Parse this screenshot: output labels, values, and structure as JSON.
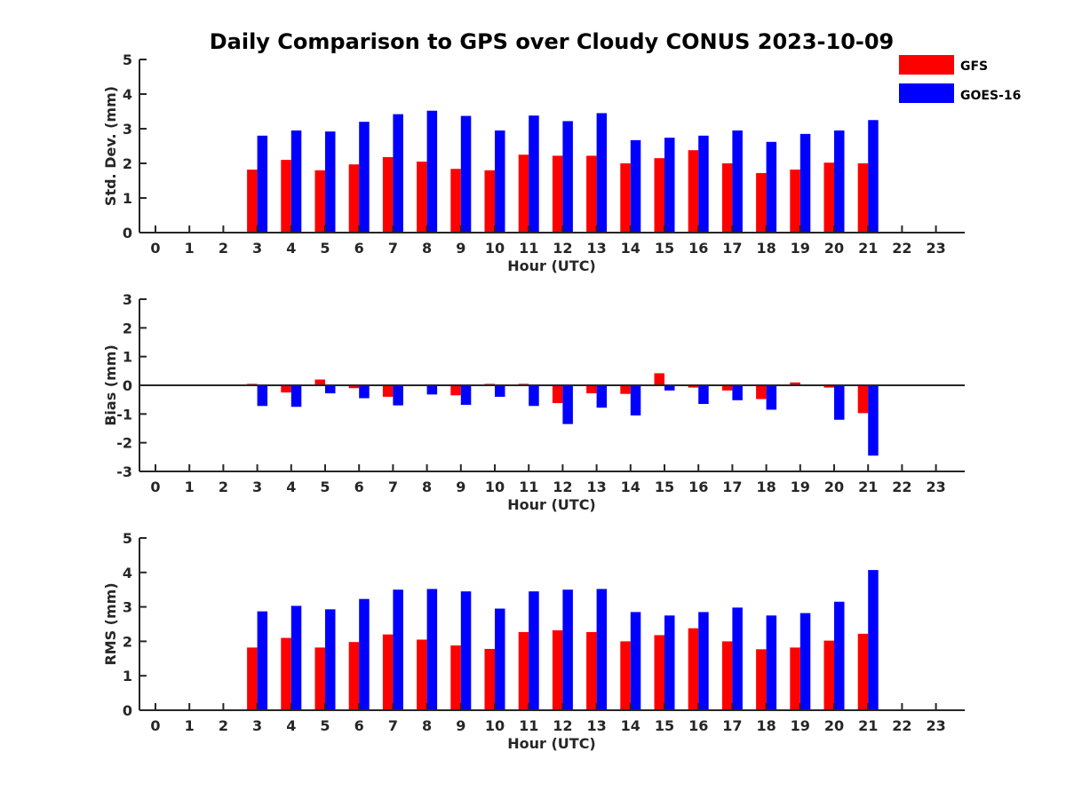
{
  "colors": {
    "gfs": "#ff0000",
    "goes": "#0000ff",
    "axis": "#262626"
  },
  "legend": [
    {
      "label": "GFS",
      "color": "#ff0000"
    },
    {
      "label": "GOES-16",
      "color": "#0000ff"
    }
  ],
  "chart_data": [
    {
      "type": "bar",
      "title": "Daily Comparison to GPS over Cloudy CONUS 2023-10-09",
      "xlabel": "Hour (UTC)",
      "ylabel": "Std. Dev. (mm)",
      "ylim": [
        0,
        5
      ],
      "yticks": [
        "0",
        "1",
        "2",
        "3",
        "4",
        "5"
      ],
      "categories": [
        "0",
        "1",
        "2",
        "3",
        "4",
        "5",
        "6",
        "7",
        "8",
        "9",
        "10",
        "11",
        "12",
        "13",
        "14",
        "15",
        "16",
        "17",
        "18",
        "19",
        "20",
        "21",
        "22",
        "23"
      ],
      "series": [
        {
          "name": "GFS",
          "values": [
            null,
            null,
            null,
            1.82,
            2.1,
            1.8,
            1.97,
            2.18,
            2.05,
            1.84,
            1.8,
            2.25,
            2.22,
            2.22,
            2.0,
            2.15,
            2.38,
            2.0,
            1.72,
            1.82,
            2.02,
            2.0,
            null,
            null
          ]
        },
        {
          "name": "GOES-16",
          "values": [
            null,
            null,
            null,
            2.8,
            2.95,
            2.92,
            3.2,
            3.42,
            3.52,
            3.37,
            2.95,
            3.38,
            3.22,
            3.45,
            2.67,
            2.74,
            2.8,
            2.95,
            2.62,
            2.85,
            2.95,
            3.25,
            null,
            null
          ]
        }
      ]
    },
    {
      "type": "bar",
      "title": "",
      "xlabel": "Hour (UTC)",
      "ylabel": "Bias (mm)",
      "ylim": [
        -3,
        3
      ],
      "yticks": [
        "-3",
        "-2",
        "-1",
        "0",
        "1",
        "2",
        "3"
      ],
      "categories": [
        "0",
        "1",
        "2",
        "3",
        "4",
        "5",
        "6",
        "7",
        "8",
        "9",
        "10",
        "11",
        "12",
        "13",
        "14",
        "15",
        "16",
        "17",
        "18",
        "19",
        "20",
        "21",
        "22",
        "23"
      ],
      "series": [
        {
          "name": "GFS",
          "values": [
            null,
            null,
            null,
            0.05,
            -0.25,
            0.2,
            -0.1,
            -0.4,
            0.02,
            -0.35,
            0.05,
            0.05,
            -0.62,
            -0.28,
            -0.3,
            0.42,
            -0.08,
            -0.18,
            -0.48,
            0.1,
            -0.08,
            -0.97,
            null,
            null
          ]
        },
        {
          "name": "GOES-16",
          "values": [
            null,
            null,
            null,
            -0.72,
            -0.75,
            -0.28,
            -0.45,
            -0.7,
            -0.32,
            -0.68,
            -0.4,
            -0.72,
            -1.35,
            -0.78,
            -1.05,
            -0.18,
            -0.65,
            -0.52,
            -0.85,
            -0.02,
            -1.2,
            -2.45,
            null,
            null
          ]
        }
      ]
    },
    {
      "type": "bar",
      "title": "",
      "xlabel": "Hour (UTC)",
      "ylabel": "RMS (mm)",
      "ylim": [
        0,
        5
      ],
      "yticks": [
        "0",
        "1",
        "2",
        "3",
        "4",
        "5"
      ],
      "categories": [
        "0",
        "1",
        "2",
        "3",
        "4",
        "5",
        "6",
        "7",
        "8",
        "9",
        "10",
        "11",
        "12",
        "13",
        "14",
        "15",
        "16",
        "17",
        "18",
        "19",
        "20",
        "21",
        "22",
        "23"
      ],
      "series": [
        {
          "name": "GFS",
          "values": [
            null,
            null,
            null,
            1.82,
            2.1,
            1.82,
            1.98,
            2.2,
            2.05,
            1.88,
            1.78,
            2.27,
            2.32,
            2.27,
            2.0,
            2.18,
            2.38,
            2.0,
            1.77,
            1.82,
            2.02,
            2.22,
            null,
            null
          ]
        },
        {
          "name": "GOES-16",
          "values": [
            null,
            null,
            null,
            2.87,
            3.03,
            2.93,
            3.23,
            3.5,
            3.52,
            3.45,
            2.95,
            3.45,
            3.5,
            3.52,
            2.85,
            2.75,
            2.85,
            2.98,
            2.75,
            2.82,
            3.15,
            4.07,
            null,
            null
          ]
        }
      ]
    }
  ]
}
